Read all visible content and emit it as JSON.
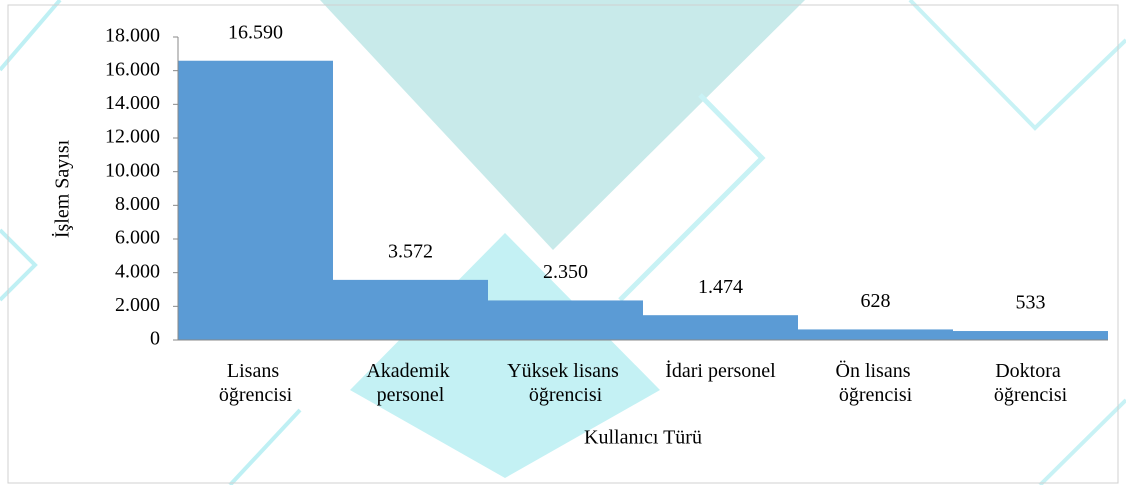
{
  "chart_data": {
    "type": "bar",
    "x_label": "Kullanıcı Türü",
    "y_label": "İşlem Sayısı",
    "categories": [
      "Lisans öğrencisi",
      "Akademik personel",
      "Yüksek lisans öğrencisi",
      "İdari personel",
      "Ön lisans öğrencisi",
      "Doktora öğrencisi"
    ],
    "values": [
      16590,
      3572,
      2350,
      1474,
      628,
      533
    ],
    "value_labels": [
      "16.590",
      "3.572",
      "2.350",
      "1.474",
      "628",
      "533"
    ],
    "color": "#5b9bd5",
    "ylim": [
      0,
      18000
    ],
    "yticks": [
      0,
      {
        "value": 2000,
        "label": "2.000"
      },
      {
        "value": 4000,
        "label": "4.000"
      },
      {
        "value": 6000,
        "label": "6.000"
      },
      {
        "value": 8000,
        "label": "8.000"
      },
      {
        "value": 10000,
        "label": "10.000"
      },
      {
        "value": 12000,
        "label": "12.000"
      },
      {
        "value": 14000,
        "label": "14.000"
      },
      {
        "value": 16000,
        "label": "16.000"
      },
      {
        "value": 18000,
        "label": "18.000"
      }
    ]
  }
}
